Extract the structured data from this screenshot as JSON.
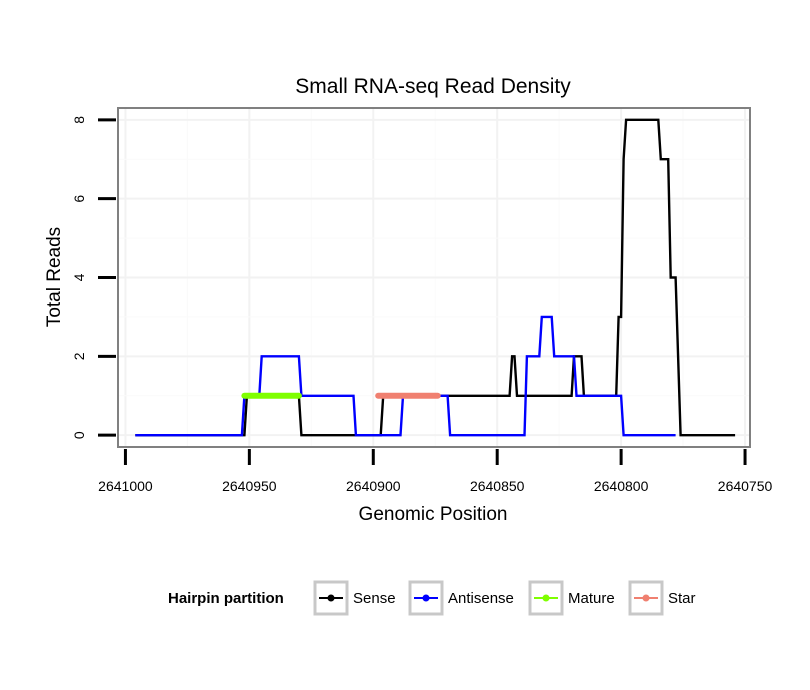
{
  "chart_data": {
    "type": "line",
    "title": "Small RNA-seq Read Density",
    "xlabel": "Genomic Position",
    "ylabel": "Total Reads",
    "x_reversed": true,
    "xlim": [
      2641003,
      2640748
    ],
    "ylim": [
      -0.3,
      8.3
    ],
    "x_ticks": [
      2641000,
      2640950,
      2640900,
      2640850,
      2640800,
      2640750
    ],
    "x_tick_labels": [
      "2641000",
      "2640950",
      "2640900",
      "2640850",
      "2640800",
      "2640750"
    ],
    "y_ticks": [
      0,
      2,
      4,
      6,
      8
    ],
    "y_tick_labels": [
      "0",
      "2",
      "4",
      "6",
      "8"
    ],
    "grid": true,
    "legend": {
      "title": "Hairpin partition",
      "position": "bottom",
      "entries": [
        "Sense",
        "Antisense",
        "Mature",
        "Star"
      ]
    },
    "series": [
      {
        "name": "Sense",
        "color": "#000000",
        "x": [
          2640996,
          2640952,
          2640951,
          2640930,
          2640929,
          2640897,
          2640896,
          2640845,
          2640844,
          2640843,
          2640842,
          2640820,
          2640819,
          2640816,
          2640815,
          2640802,
          2640801,
          2640800,
          2640799,
          2640798,
          2640797,
          2640796,
          2640785,
          2640784,
          2640781,
          2640780,
          2640778,
          2640777,
          2640776,
          2640754
        ],
        "y": [
          0,
          0,
          1,
          1,
          0,
          0,
          1,
          1,
          2,
          2,
          1,
          1,
          2,
          2,
          1,
          1,
          3,
          3,
          7,
          8,
          8,
          8,
          8,
          7,
          7,
          4,
          4,
          2,
          0,
          0
        ]
      },
      {
        "name": "Antisense",
        "color": "#0000ff",
        "x": [
          2640996,
          2640953,
          2640952,
          2640946,
          2640945,
          2640930,
          2640929,
          2640908,
          2640907,
          2640889,
          2640888,
          2640870,
          2640869,
          2640839,
          2640838,
          2640833,
          2640832,
          2640828,
          2640827,
          2640819,
          2640818,
          2640811,
          2640810,
          2640800,
          2640799,
          2640778
        ],
        "y": [
          0,
          0,
          1,
          1,
          2,
          2,
          1,
          1,
          0,
          0,
          1,
          1,
          0,
          0,
          2,
          2,
          3,
          3,
          2,
          2,
          1,
          1,
          1,
          1,
          0,
          0
        ]
      },
      {
        "name": "Mature",
        "color": "#7fff00",
        "x": [
          2640952,
          2640930
        ],
        "y": [
          1,
          1
        ]
      },
      {
        "name": "Star",
        "color": "#f08070",
        "x": [
          2640898,
          2640874
        ],
        "y": [
          1,
          1
        ]
      }
    ]
  }
}
